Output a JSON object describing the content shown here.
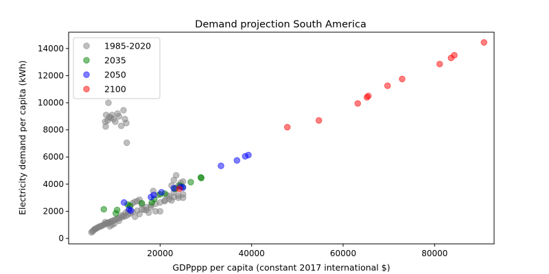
{
  "chart_data": {
    "type": "scatter",
    "title": "Demand projection South America",
    "xlabel": "GDPppp per capita (constant 2017 international $)",
    "ylabel": "Electricity demand per capita (kWh)",
    "xlim": [
      0,
      93000
    ],
    "ylim": [
      -400,
      15200
    ],
    "xticks": [
      20000,
      40000,
      60000,
      80000
    ],
    "yticks": [
      0,
      2000,
      4000,
      6000,
      8000,
      10000,
      12000,
      14000
    ],
    "grid": false,
    "legend_position": "top-left",
    "series": [
      {
        "name": "1985-2020",
        "color": "#808080",
        "points": [
          [
            5000,
            450
          ],
          [
            5200,
            520
          ],
          [
            5400,
            580
          ],
          [
            5600,
            650
          ],
          [
            5800,
            700
          ],
          [
            6000,
            720
          ],
          [
            6200,
            780
          ],
          [
            6500,
            820
          ],
          [
            6800,
            880
          ],
          [
            7000,
            900
          ],
          [
            7300,
            950
          ],
          [
            7600,
            1000
          ],
          [
            7900,
            1050
          ],
          [
            8200,
            1100
          ],
          [
            8500,
            1150
          ],
          [
            8800,
            1180
          ],
          [
            9000,
            1200
          ],
          [
            9300,
            1250
          ],
          [
            9600,
            1300
          ],
          [
            10000,
            1350
          ],
          [
            10300,
            1400
          ],
          [
            10700,
            1450
          ],
          [
            11000,
            1500
          ],
          [
            11500,
            1550
          ],
          [
            12000,
            1600
          ],
          [
            12500,
            1650
          ],
          [
            13000,
            1750
          ],
          [
            13500,
            1850
          ],
          [
            14000,
            1950
          ],
          [
            15000,
            2050
          ],
          [
            16000,
            2150
          ],
          [
            17000,
            2300
          ],
          [
            18000,
            2450
          ],
          [
            19000,
            2550
          ],
          [
            20000,
            2650
          ],
          [
            21000,
            2750
          ],
          [
            22000,
            2900
          ],
          [
            23000,
            3050
          ],
          [
            24000,
            3150
          ],
          [
            25000,
            3250
          ],
          [
            8000,
            1200
          ],
          [
            8500,
            1100
          ],
          [
            9000,
            900
          ],
          [
            9500,
            1000
          ],
          [
            10000,
            1100
          ],
          [
            11000,
            1300
          ],
          [
            12000,
            1700
          ],
          [
            13000,
            2000
          ],
          [
            13500,
            2400
          ],
          [
            14000,
            2600
          ],
          [
            14500,
            2700
          ],
          [
            15000,
            2750
          ],
          [
            15500,
            2850
          ],
          [
            16000,
            2500
          ],
          [
            17000,
            2100
          ],
          [
            18000,
            2300
          ],
          [
            19000,
            2000
          ],
          [
            20000,
            2000
          ],
          [
            21000,
            2800
          ],
          [
            22000,
            3100
          ],
          [
            23000,
            3400
          ],
          [
            23500,
            3700
          ],
          [
            24000,
            3900
          ],
          [
            24500,
            4100
          ],
          [
            25000,
            4200
          ],
          [
            23000,
            4300
          ],
          [
            23500,
            4650
          ],
          [
            22500,
            3900
          ],
          [
            24000,
            3000
          ],
          [
            25000,
            3000
          ],
          [
            21500,
            3200
          ],
          [
            22500,
            2800
          ],
          [
            18500,
            3500
          ],
          [
            19500,
            3200
          ],
          [
            16500,
            2100
          ],
          [
            15500,
            1800
          ],
          [
            14500,
            1600
          ],
          [
            17500,
            1900
          ],
          [
            12500,
            1900
          ],
          [
            11500,
            1700
          ],
          [
            8000,
            8600
          ],
          [
            8200,
            9100
          ],
          [
            8500,
            8700
          ],
          [
            8700,
            10000
          ],
          [
            8900,
            8950
          ],
          [
            9200,
            8900
          ],
          [
            9500,
            9100
          ],
          [
            9800,
            8800
          ],
          [
            10200,
            8600
          ],
          [
            10700,
            9200
          ],
          [
            11000,
            9000
          ],
          [
            11500,
            8300
          ],
          [
            12000,
            9450
          ],
          [
            12300,
            8800
          ],
          [
            12600,
            8500
          ],
          [
            12700,
            7050
          ],
          [
            8100,
            8250
          ]
        ]
      },
      {
        "name": "2035",
        "color": "#008000",
        "points": [
          [
            7700,
            2150
          ],
          [
            10300,
            1850
          ],
          [
            10600,
            2100
          ],
          [
            13400,
            2400
          ],
          [
            16000,
            2600
          ],
          [
            18200,
            2650
          ],
          [
            18700,
            2900
          ],
          [
            21000,
            3300
          ],
          [
            23200,
            3650
          ],
          [
            24300,
            3900
          ],
          [
            26700,
            4150
          ],
          [
            28900,
            4500
          ],
          [
            29000,
            4450
          ],
          [
            12900,
            2500
          ],
          [
            20000,
            3250
          ],
          [
            24900,
            3800
          ]
        ]
      },
      {
        "name": "2050",
        "color": "#0000ff",
        "points": [
          [
            12100,
            2650
          ],
          [
            13200,
            2150
          ],
          [
            13600,
            2050
          ],
          [
            18000,
            3050
          ],
          [
            18600,
            3200
          ],
          [
            20300,
            3400
          ],
          [
            23000,
            3700
          ],
          [
            24500,
            3800
          ],
          [
            25000,
            3750
          ],
          [
            33300,
            5350
          ],
          [
            36800,
            5750
          ],
          [
            38600,
            6050
          ],
          [
            39300,
            6150
          ]
        ]
      },
      {
        "name": "2100",
        "color": "#ff0000",
        "points": [
          [
            24200,
            3650
          ],
          [
            47800,
            8200
          ],
          [
            54700,
            8700
          ],
          [
            63200,
            9950
          ],
          [
            65200,
            10400
          ],
          [
            65500,
            10500
          ],
          [
            69700,
            11250
          ],
          [
            72900,
            11750
          ],
          [
            81100,
            12850
          ],
          [
            83600,
            13300
          ],
          [
            84300,
            13500
          ],
          [
            90800,
            14450
          ]
        ]
      }
    ]
  }
}
